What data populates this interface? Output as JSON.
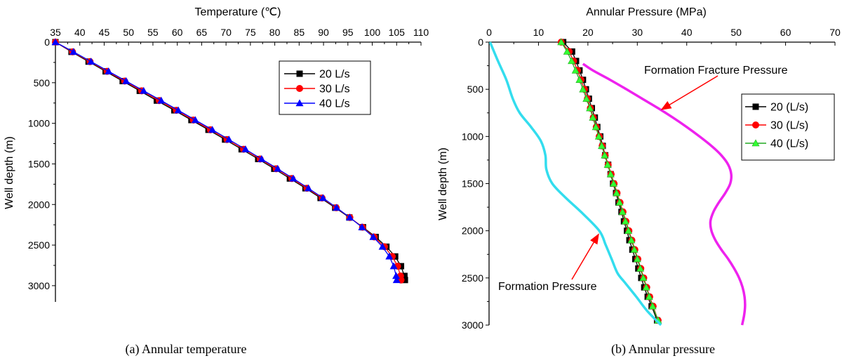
{
  "chart_data": [
    {
      "type": "line",
      "caption": "(a) Annular temperature",
      "xlabel": "Temperature (℃)",
      "ylabel": "Well depth (m)",
      "xlim": [
        35,
        110
      ],
      "ylim": [
        0,
        3200
      ],
      "xticks": [
        35,
        40,
        45,
        50,
        55,
        60,
        65,
        70,
        75,
        80,
        85,
        90,
        95,
        100,
        105,
        110
      ],
      "yticks": [
        0,
        500,
        1000,
        1500,
        2000,
        2500,
        3000
      ],
      "legend_position": "top-right",
      "series": [
        {
          "name": "20 L/s",
          "color": "#000000",
          "marker": "square",
          "depth": [
            0,
            120,
            240,
            360,
            480,
            600,
            720,
            840,
            960,
            1080,
            1200,
            1320,
            1440,
            1560,
            1680,
            1800,
            1920,
            2040,
            2160,
            2280,
            2400,
            2520,
            2640,
            2760,
            2880,
            2930
          ],
          "values": [
            35,
            38.3,
            41.8,
            45.3,
            48.8,
            52.3,
            55.8,
            59.4,
            62.9,
            66.4,
            69.8,
            73.2,
            76.6,
            79.9,
            83.1,
            86.3,
            89.4,
            92.4,
            95.3,
            98.1,
            100.7,
            102.9,
            104.7,
            105.9,
            106.6,
            106.7
          ]
        },
        {
          "name": "30 L/s",
          "color": "#ff0000",
          "marker": "circle",
          "depth": [
            0,
            120,
            240,
            360,
            480,
            600,
            720,
            840,
            960,
            1080,
            1200,
            1320,
            1440,
            1560,
            1680,
            1800,
            1920,
            2040,
            2160,
            2280,
            2400,
            2520,
            2640,
            2760,
            2880,
            2930
          ],
          "values": [
            35,
            38.5,
            42.1,
            45.6,
            49.2,
            52.7,
            56.3,
            59.8,
            63.3,
            66.8,
            70.2,
            73.6,
            77.0,
            80.3,
            83.5,
            86.6,
            89.7,
            92.6,
            95.4,
            98.0,
            100.4,
            102.5,
            104.1,
            105.2,
            105.8,
            105.9
          ]
        },
        {
          "name": "40 L/s",
          "color": "#0000ff",
          "marker": "triangle",
          "depth": [
            0,
            120,
            240,
            360,
            480,
            600,
            720,
            840,
            960,
            1080,
            1200,
            1320,
            1440,
            1560,
            1680,
            1800,
            1920,
            2040,
            2160,
            2280,
            2400,
            2520,
            2640,
            2760,
            2880,
            2930
          ],
          "values": [
            35,
            38.7,
            42.3,
            45.9,
            49.5,
            53.1,
            56.7,
            60.2,
            63.7,
            67.2,
            70.6,
            74.0,
            77.3,
            80.6,
            83.8,
            86.9,
            89.9,
            92.7,
            95.4,
            97.9,
            100.2,
            102.1,
            103.5,
            104.4,
            104.9,
            105.0
          ]
        }
      ]
    },
    {
      "type": "line",
      "caption": "(b) Annular pressure",
      "xlabel": "Annular Pressure (MPa)",
      "ylabel": "Well depth (m)",
      "xlim": [
        0,
        70
      ],
      "ylim": [
        0,
        3000
      ],
      "xticks": [
        0,
        10,
        20,
        30,
        40,
        50,
        60,
        70
      ],
      "yticks": [
        0,
        500,
        1000,
        1500,
        2000,
        2500,
        3000
      ],
      "legend_position": "right",
      "series": [
        {
          "name": "20 (L/s)",
          "color": "#000000",
          "marker": "square",
          "depth": [
            0,
            100,
            200,
            300,
            400,
            500,
            600,
            700,
            800,
            900,
            1000,
            1100,
            1200,
            1300,
            1400,
            1500,
            1600,
            1700,
            1800,
            1900,
            2000,
            2100,
            2200,
            2300,
            2400,
            2500,
            2600,
            2700,
            2800,
            2950
          ],
          "values": [
            15.0,
            16.8,
            17.6,
            18.3,
            19.0,
            19.6,
            20.2,
            20.8,
            21.4,
            21.9,
            22.5,
            23.0,
            23.5,
            24.1,
            24.6,
            25.1,
            25.7,
            26.2,
            26.8,
            27.3,
            27.9,
            28.4,
            29.0,
            29.6,
            30.2,
            30.8,
            31.4,
            32.1,
            32.9,
            34.0
          ]
        },
        {
          "name": "30 (L/s)",
          "color": "#ff0000",
          "marker": "circle",
          "depth": [
            0,
            100,
            200,
            300,
            400,
            500,
            600,
            700,
            800,
            900,
            1000,
            1100,
            1200,
            1300,
            1400,
            1500,
            1600,
            1700,
            1800,
            1900,
            2000,
            2100,
            2200,
            2300,
            2400,
            2500,
            2600,
            2700,
            2800,
            2950
          ],
          "values": [
            14.6,
            16.2,
            17.1,
            17.9,
            18.6,
            19.3,
            19.9,
            20.5,
            21.1,
            21.7,
            22.3,
            22.9,
            23.5,
            24.1,
            24.7,
            25.3,
            25.9,
            26.5,
            27.1,
            27.7,
            28.3,
            28.9,
            29.5,
            30.1,
            30.7,
            31.3,
            31.9,
            32.5,
            33.2,
            34.2
          ]
        },
        {
          "name": "40 (L/s)",
          "color": "#33ff33",
          "marker": "triangle",
          "depth": [
            0,
            100,
            200,
            300,
            400,
            500,
            600,
            700,
            800,
            900,
            1000,
            1100,
            1200,
            1300,
            1400,
            1500,
            1600,
            1700,
            1800,
            1900,
            2000,
            2100,
            2200,
            2300,
            2400,
            2500,
            2600,
            2700,
            2800,
            2950
          ],
          "values": [
            14.6,
            15.8,
            16.7,
            17.5,
            18.3,
            19.0,
            19.7,
            20.4,
            21.0,
            21.6,
            22.2,
            22.8,
            23.4,
            24.0,
            24.6,
            25.2,
            25.8,
            26.4,
            27.0,
            27.6,
            28.2,
            28.8,
            29.4,
            30.0,
            30.6,
            31.2,
            31.8,
            32.4,
            33.1,
            34.2
          ]
        },
        {
          "name": "Formation Pressure",
          "color": "#33ddee",
          "marker": "none",
          "depth": [
            0,
            200,
            400,
            600,
            750,
            900,
            1050,
            1200,
            1350,
            1500,
            1650,
            1800,
            2000,
            2150,
            2300,
            2450,
            2550,
            2700,
            2850,
            3000
          ],
          "values": [
            0.2,
            1.8,
            3.5,
            4.8,
            6.2,
            8.5,
            10.5,
            11.4,
            11.6,
            12.8,
            15.5,
            18.6,
            22.3,
            23.6,
            24.8,
            26.0,
            27.5,
            29.8,
            32.0,
            34.8
          ]
        },
        {
          "name": "Formation Fracture Pressure",
          "color": "#ee22ee",
          "marker": "none",
          "depth": [
            230,
            300,
            400,
            500,
            600,
            700,
            800,
            900,
            1000,
            1100,
            1200,
            1300,
            1400,
            1500,
            1600,
            1700,
            1800,
            1900,
            2000,
            2100,
            2200,
            2300,
            2400,
            2500,
            2600,
            2700,
            2800,
            2900,
            3000
          ],
          "values": [
            19.0,
            21.0,
            24.5,
            27.8,
            31.0,
            34.2,
            37.2,
            40.0,
            42.6,
            45.0,
            47.0,
            48.4,
            49.0,
            48.8,
            47.8,
            46.5,
            45.4,
            44.8,
            45.0,
            45.8,
            47.0,
            48.4,
            49.6,
            50.6,
            51.3,
            51.7,
            51.8,
            51.6,
            51.2
          ]
        }
      ],
      "annotations": [
        {
          "text": "Formation Fracture Pressure",
          "target_series": "Formation Fracture Pressure",
          "target_x": 34.2,
          "target_depth": 700
        },
        {
          "text": "Formation Pressure",
          "target_series": "Formation Pressure",
          "target_x": 22.3,
          "target_depth": 2000
        }
      ]
    }
  ]
}
